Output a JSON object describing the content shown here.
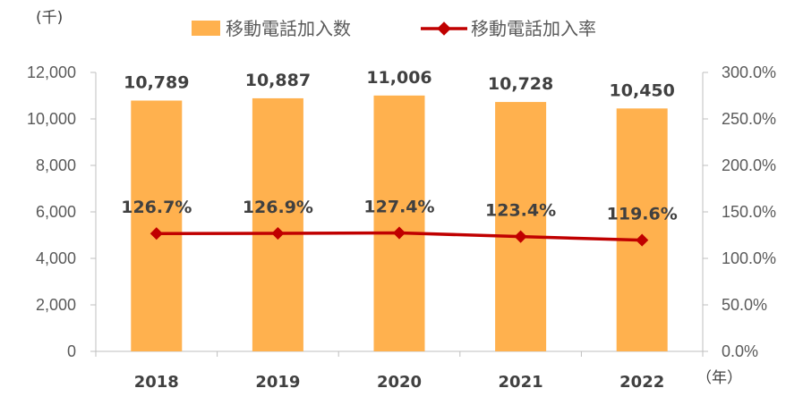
{
  "chart_data": {
    "type": "bar",
    "categories": [
      "2018",
      "2019",
      "2020",
      "2021",
      "2022"
    ],
    "series": [
      {
        "name": "移動電話加入数",
        "type": "bar",
        "axis": "left",
        "values": [
          10789,
          10887,
          11006,
          10728,
          10450
        ],
        "labels": [
          "10,789",
          "10,887",
          "11,006",
          "10,728",
          "10,450"
        ]
      },
      {
        "name": "移動電話加入率",
        "type": "line",
        "axis": "right",
        "values": [
          126.7,
          126.9,
          127.4,
          123.4,
          119.6
        ],
        "labels": [
          "126.7%",
          "126.9%",
          "127.4%",
          "123.4%",
          "119.6%"
        ]
      }
    ],
    "y_left": {
      "unit": "(千)",
      "ylim": [
        0,
        12000
      ],
      "ticks": [
        "0",
        "2,000",
        "4,000",
        "6,000",
        "8,000",
        "10,000",
        "12,000"
      ]
    },
    "y_right": {
      "ylim": [
        0,
        300
      ],
      "ticks": [
        "0.0%",
        "50.0%",
        "100.0%",
        "150.0%",
        "200.0%",
        "250.0%",
        "300.0%"
      ]
    },
    "x_unit": "（年）",
    "legend_position": "top",
    "grid": false,
    "colors": {
      "bar": "#FFB14E",
      "line": "#C00000",
      "axis": "#BFBFBF"
    }
  }
}
